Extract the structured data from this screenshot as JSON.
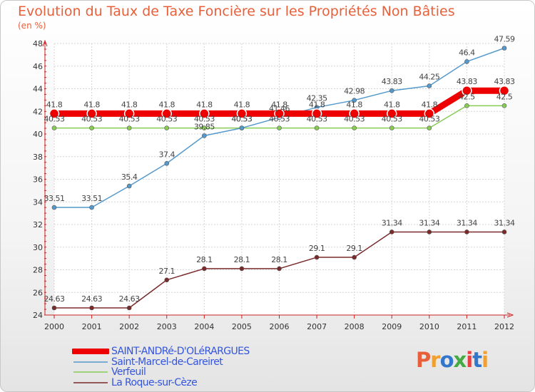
{
  "chart_data": {
    "type": "line",
    "title": "Evolution du Taux de Taxe Foncière sur les Propriétés Non Bâties",
    "subtitle": "(en %)",
    "x": [
      2000,
      2001,
      2002,
      2003,
      2004,
      2005,
      2006,
      2007,
      2008,
      2009,
      2010,
      2011,
      2012
    ],
    "ylim": [
      24,
      48
    ],
    "yticks": [
      24,
      26,
      28,
      30,
      32,
      34,
      36,
      38,
      40,
      42,
      44,
      46,
      48
    ],
    "grid": true,
    "series": [
      {
        "name": "SAINT-ANDRé-D'OLéRARGUES",
        "color": "#ee0000",
        "values": [
          41.8,
          41.8,
          41.8,
          41.8,
          41.8,
          41.8,
          41.8,
          41.8,
          41.8,
          41.8,
          41.8,
          43.83,
          43.83
        ],
        "labels": [
          "41.8",
          "41.8",
          "41.8",
          "41.8",
          "41.8",
          "41.8",
          "41.8",
          "41.8",
          "41.8",
          "41.8",
          "41.8",
          "43.83",
          "43.83"
        ]
      },
      {
        "name": "Saint-Marcel-de-Careiret",
        "color": "#5599cc",
        "values": [
          33.51,
          33.51,
          35.4,
          37.4,
          39.85,
          40.53,
          41.46,
          42.35,
          42.98,
          43.83,
          44.25,
          46.4,
          47.59
        ],
        "labels": [
          "33.51",
          "33.51",
          "35.4",
          "37.4",
          "39.85",
          "40.53",
          "41.46",
          "42.35",
          "42.98",
          "43.83",
          "44.25",
          "46.4",
          "47.59"
        ]
      },
      {
        "name": "Verfeuil",
        "color": "#88cc55",
        "values": [
          40.53,
          40.53,
          40.53,
          40.53,
          40.53,
          40.53,
          40.53,
          40.53,
          40.53,
          40.53,
          40.53,
          42.5,
          42.5
        ],
        "labels": [
          "40.53",
          "40.53",
          "40.53",
          "40.53",
          "40.53",
          "40.53",
          "40.53",
          "40.53",
          "40.53",
          "40.53",
          "40.53",
          "42.5",
          "42.5"
        ]
      },
      {
        "name": "La Roque-sur-Cèze",
        "color": "#7a2a2a",
        "values": [
          24.63,
          24.63,
          24.63,
          27.1,
          28.1,
          28.1,
          28.1,
          29.1,
          29.1,
          31.34,
          31.34,
          31.34,
          31.34
        ],
        "labels": [
          "24.63",
          "24.63",
          "24.63",
          "27.1",
          "28.1",
          "28.1",
          "28.1",
          "29.1",
          "29.1",
          "31.34",
          "31.34",
          "31.34",
          "31.34"
        ]
      }
    ]
  },
  "logo": {
    "text": "Proxiti",
    "colors": [
      "#e8603a",
      "#f0a030",
      "#3377cc",
      "#44aa44",
      "#e84040",
      "#3377cc",
      "#f0a030"
    ]
  }
}
